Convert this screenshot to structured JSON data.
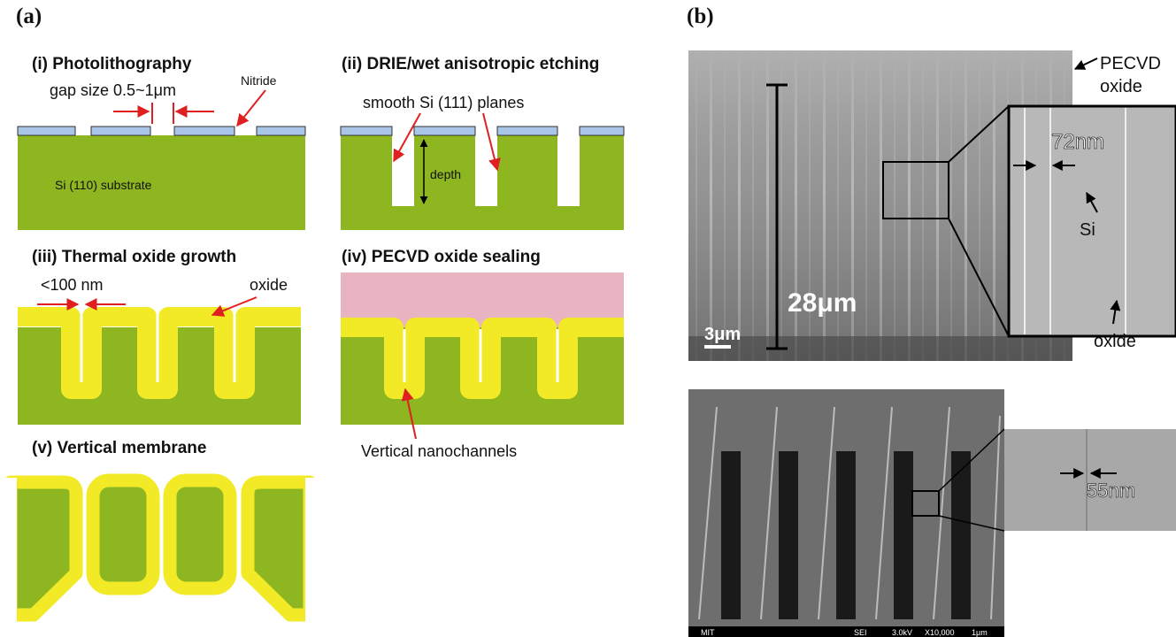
{
  "panel_a": {
    "label": "(a)",
    "steps": [
      {
        "title": "(i) Photolithography",
        "labels": [
          "gap size 0.5~1μm",
          "Nitride",
          "Si (110) substrate"
        ]
      },
      {
        "title": "(ii) DRIE/wet anisotropic etching",
        "labels": [
          "smooth Si (111) planes",
          "depth"
        ]
      },
      {
        "title": "(iii) Thermal oxide growth",
        "labels": [
          "<100 nm",
          "oxide"
        ]
      },
      {
        "title": "(iv) PECVD oxide sealing",
        "labels": [
          "Vertical nanochannels"
        ]
      },
      {
        "title": "(v) Vertical membrane"
      }
    ]
  },
  "panel_b": {
    "label": "(b)",
    "top_image": {
      "labels": [
        "PECVD",
        "oxide",
        "28μm",
        "3μm",
        "72nm",
        "Si",
        "oxide"
      ]
    },
    "bottom_image": {
      "labels": [
        "55nm"
      ],
      "footer": [
        "MIT",
        "SEI",
        "3.0kV",
        "X10,000",
        "1μm"
      ]
    }
  }
}
